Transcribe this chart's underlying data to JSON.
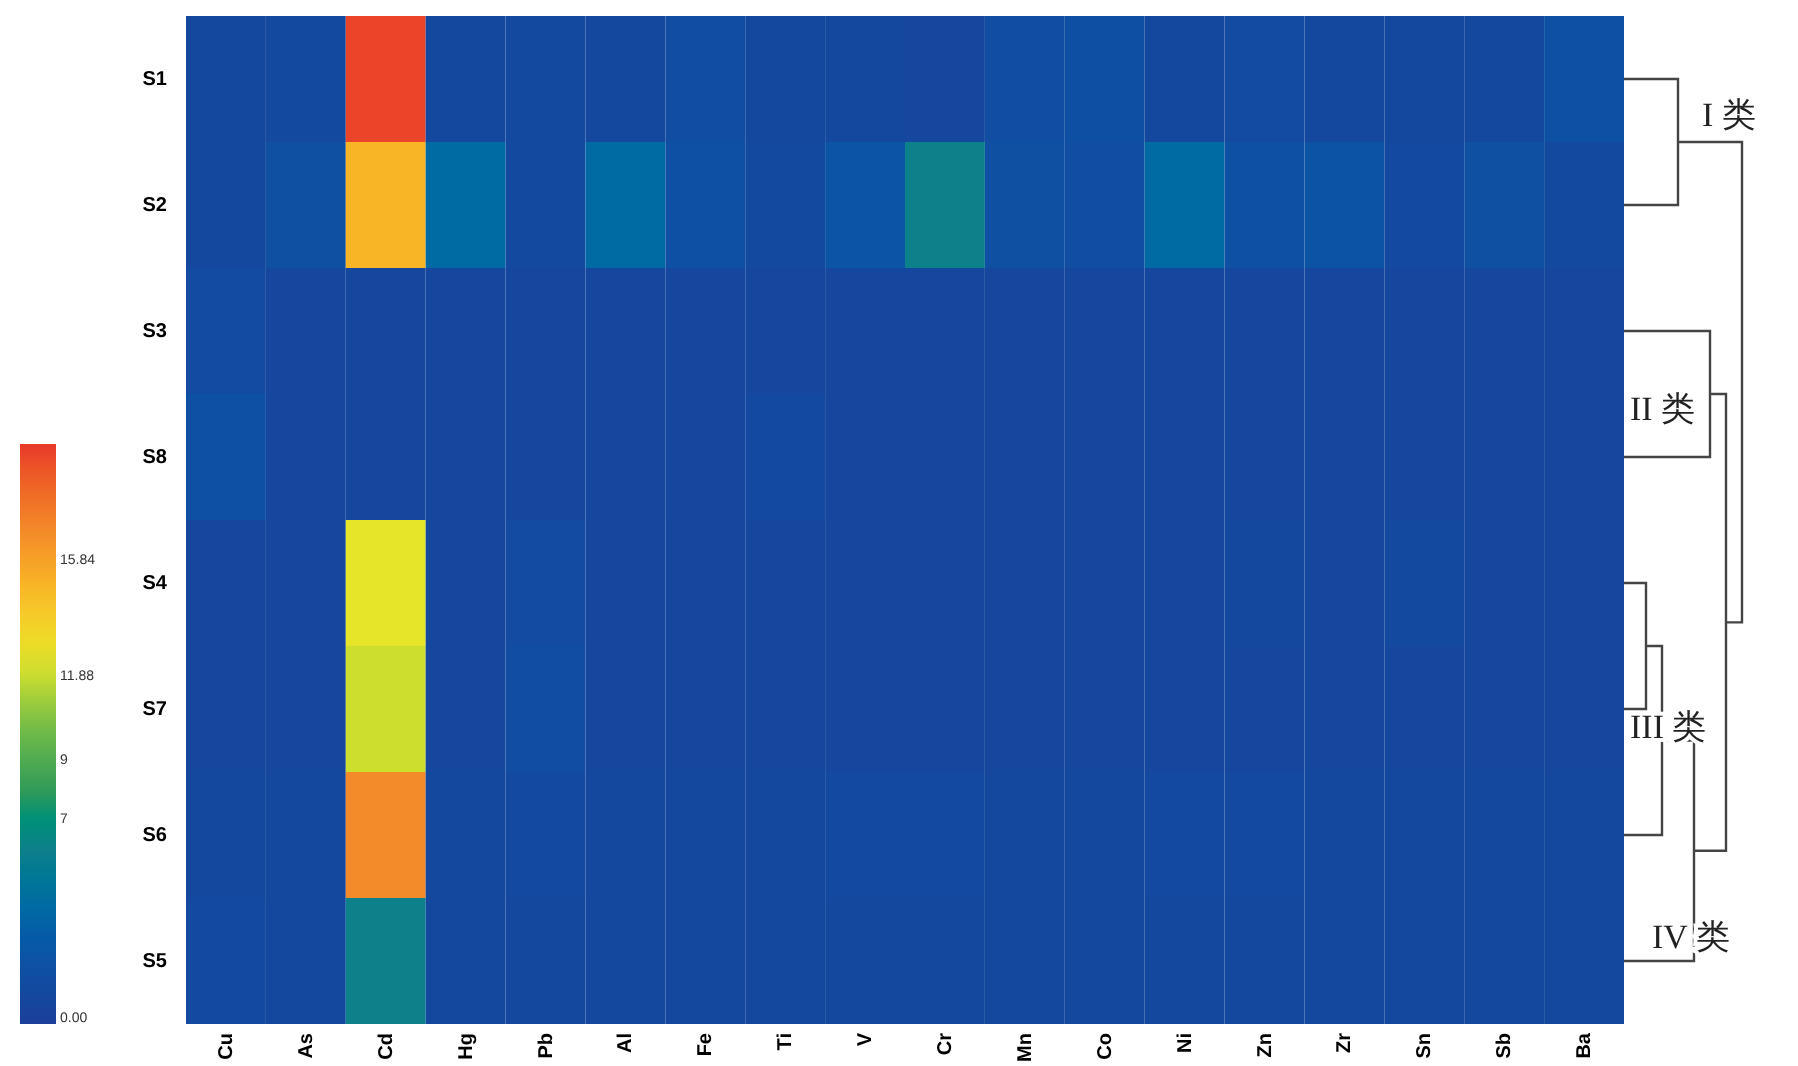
{
  "chart_data": {
    "type": "heatmap",
    "categories": [
      "Cu",
      "As",
      "Cd",
      "Hg",
      "Pb",
      "Al",
      "Fe",
      "Ti",
      "V",
      "Cr",
      "Mn",
      "Co",
      "Ni",
      "Zn",
      "Zr",
      "Sn",
      "Sb",
      "Ba"
    ],
    "y_categories": [
      "S1",
      "S2",
      "S3",
      "S8",
      "S4",
      "S7",
      "S6",
      "S5"
    ],
    "cells": [
      [
        1.0,
        1.2,
        19.5,
        1.0,
        1.2,
        1.0,
        1.5,
        1.0,
        1.0,
        0.9,
        1.5,
        1.7,
        1.0,
        1.3,
        1.0,
        1.0,
        1.0,
        2.0
      ],
      [
        1.0,
        1.8,
        15.0,
        4.0,
        1.2,
        4.0,
        2.0,
        1.2,
        2.3,
        6.0,
        1.8,
        1.5,
        4.0,
        2.0,
        2.2,
        1.1,
        1.8,
        1.2
      ],
      [
        1.3,
        0.8,
        0.8,
        0.8,
        0.8,
        0.8,
        0.8,
        0.8,
        0.8,
        0.8,
        0.8,
        0.8,
        0.8,
        0.8,
        0.8,
        0.8,
        0.8,
        0.8
      ],
      [
        2.0,
        0.8,
        0.9,
        0.8,
        0.8,
        0.8,
        0.8,
        1.1,
        0.8,
        0.8,
        0.8,
        0.8,
        0.8,
        0.8,
        0.8,
        0.8,
        0.8,
        0.8
      ],
      [
        0.9,
        0.9,
        12.5,
        0.9,
        1.3,
        0.9,
        0.9,
        0.9,
        0.9,
        0.9,
        0.9,
        0.9,
        0.9,
        1.0,
        0.9,
        1.2,
        0.9,
        0.9
      ],
      [
        0.9,
        0.9,
        12.0,
        0.9,
        1.5,
        0.9,
        0.9,
        0.9,
        0.9,
        0.9,
        0.9,
        0.9,
        0.9,
        0.9,
        0.9,
        0.9,
        0.9,
        0.9
      ],
      [
        1.0,
        1.0,
        16.8,
        1.0,
        1.1,
        1.0,
        1.0,
        1.0,
        1.1,
        1.1,
        1.0,
        1.0,
        1.1,
        1.1,
        1.0,
        1.0,
        1.0,
        1.0
      ],
      [
        1.1,
        1.0,
        6.0,
        1.0,
        1.0,
        1.0,
        1.0,
        1.0,
        1.0,
        1.0,
        1.0,
        1.0,
        1.0,
        1.0,
        1.0,
        1.0,
        1.0,
        1.0
      ]
    ],
    "clim": [
      0,
      19.8
    ],
    "cticks": [
      {
        "value": 0,
        "label": "0.00"
      },
      7,
      9,
      11.88,
      15.84
    ],
    "annotations": [
      "I 类",
      "II 类",
      "III 类",
      "IV 类"
    ]
  }
}
